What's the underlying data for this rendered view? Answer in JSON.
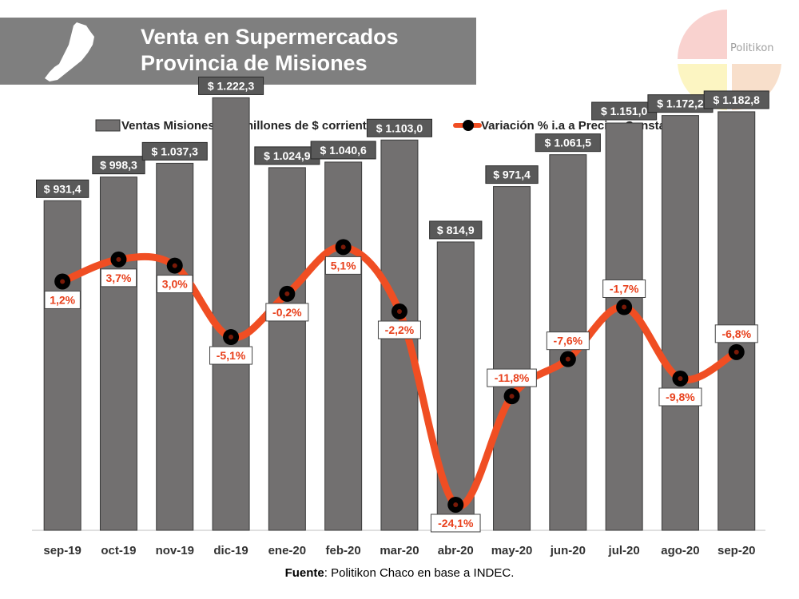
{
  "header": {
    "title_line1": "Venta en Supermercados",
    "title_line2": "Provincia de Misiones"
  },
  "logo": {
    "text": "Politikon",
    "colors": [
      "#f7c7c3",
      "#fbf3b3",
      "#f4c9a8"
    ]
  },
  "colors": {
    "bar": "#727070",
    "bar_label_bg": "#595959",
    "line": "#f04e23",
    "marker": "#000000",
    "line_label_text": "#e8401c"
  },
  "chart_data": {
    "type": "bar",
    "title": "Venta en Supermercados Provincia de Misiones",
    "categories": [
      "sep-19",
      "oct-19",
      "nov-19",
      "dic-19",
      "ene-20",
      "feb-20",
      "mar-20",
      "abr-20",
      "may-20",
      "jun-20",
      "jul-20",
      "ago-20",
      "sep-20"
    ],
    "series": [
      {
        "name": "Ventas Misiones - en millones de $ corrientes",
        "type": "bar",
        "axis": "left",
        "values": [
          931.4,
          998.3,
          1037.3,
          1222.3,
          1024.9,
          1040.6,
          1103.0,
          814.9,
          971.4,
          1061.5,
          1151.0,
          1172.2,
          1182.8
        ],
        "labels": [
          "$ 931,4",
          "$ 998,3",
          "$ 1.037,3",
          "$ 1.222,3",
          "$ 1.024,9",
          "$ 1.040,6",
          "$ 1.103,0",
          "$ 814,9",
          "$ 971,4",
          "$ 1.061,5",
          "$ 1.151,0",
          "$ 1.172,2",
          "$ 1.182,8"
        ]
      },
      {
        "name": "Variación % i.a a Precios Constantes",
        "type": "line",
        "axis": "right",
        "values": [
          1.2,
          3.7,
          3.0,
          -5.1,
          -0.2,
          5.1,
          -2.2,
          -24.1,
          -11.8,
          -7.6,
          -1.7,
          -9.8,
          -6.8
        ],
        "labels": [
          "1,2%",
          "3,7%",
          "3,0%",
          "-5,1%",
          "-0,2%",
          "5,1%",
          "-2,2%",
          "-24,1%",
          "-11,8%",
          "-7,6%",
          "-1,7%",
          "-9,8%",
          "-6,8%"
        ]
      }
    ],
    "ylim_left": [
      0,
      1300
    ],
    "ylim_right": [
      -27,
      15
    ],
    "legend_position": "top",
    "grid": false
  },
  "source": {
    "label": "Fuente",
    "text": ": Politikon Chaco en base a INDEC."
  }
}
